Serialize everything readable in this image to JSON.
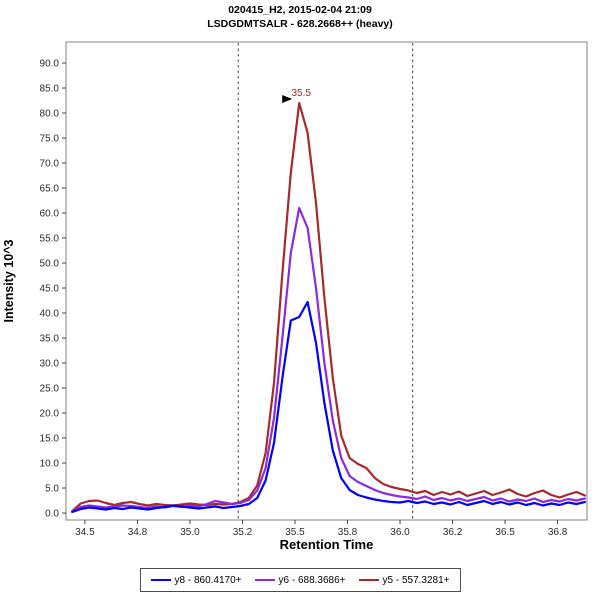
{
  "header": {
    "line1": "020415_H2, 2015-02-04 21:09",
    "line2": "LSDGDMTSALR - 628.2668++ (heavy)"
  },
  "chart_data": {
    "type": "line",
    "title": "020415_H2, 2015-02-04 21:09",
    "subtitle": "LSDGDMTSALR - 628.2668++ (heavy)",
    "xlabel": "Retention Time",
    "ylabel": "Intensity 10^3",
    "xlim": [
      34.41,
      36.89
    ],
    "ylim": [
      -1.4,
      94.2
    ],
    "grid": false,
    "legend_position": "bottom",
    "x_ticks": {
      "values": [
        34.5,
        34.75,
        35.0,
        35.25,
        35.5,
        35.75,
        36.0,
        36.25,
        36.5,
        36.75
      ],
      "labels": [
        "34.5",
        "34.8",
        "35.0",
        "35.2",
        "35.5",
        "35.8",
        "36.0",
        "36.2",
        "36.5",
        "36.8"
      ]
    },
    "y_ticks": {
      "values": [
        0,
        5,
        10,
        15,
        20,
        25,
        30,
        35,
        40,
        45,
        50,
        55,
        60,
        65,
        70,
        75,
        80,
        85,
        90
      ],
      "labels": [
        "0.0",
        "5.0",
        "10.0",
        "15.0",
        "20.0",
        "25.0",
        "30.0",
        "35.0",
        "40.0",
        "45.0",
        "50.0",
        "55.0",
        "60.0",
        "65.0",
        "70.0",
        "75.0",
        "80.0",
        "85.0",
        "90.0"
      ]
    },
    "integration_boundaries": [
      35.23,
      36.06
    ],
    "peak_annotation": {
      "text": "35.5",
      "x": 35.52,
      "y": 82,
      "color": "#A52A2A",
      "arrow_color": "#000000"
    },
    "x": [
      34.44,
      34.48,
      34.52,
      34.56,
      34.6,
      34.64,
      34.68,
      34.72,
      34.76,
      34.8,
      34.84,
      34.88,
      34.92,
      34.96,
      35.0,
      35.04,
      35.08,
      35.12,
      35.16,
      35.2,
      35.24,
      35.28,
      35.32,
      35.36,
      35.4,
      35.44,
      35.48,
      35.52,
      35.56,
      35.6,
      35.64,
      35.68,
      35.72,
      35.76,
      35.8,
      35.84,
      35.88,
      35.92,
      35.96,
      36.0,
      36.04,
      36.08,
      36.12,
      36.16,
      36.2,
      36.24,
      36.28,
      36.32,
      36.36,
      36.4,
      36.44,
      36.48,
      36.52,
      36.56,
      36.6,
      36.64,
      36.68,
      36.72,
      36.76,
      36.8,
      36.84,
      36.88
    ],
    "series": [
      {
        "name": "y8 - 860.4170+",
        "color": "#0000FF",
        "values": [
          0.2,
          0.8,
          1.1,
          0.9,
          0.7,
          1.0,
          0.8,
          1.1,
          0.9,
          0.7,
          1.0,
          1.2,
          1.5,
          1.3,
          1.1,
          0.9,
          1.1,
          1.3,
          1.0,
          1.2,
          1.4,
          1.8,
          3.0,
          6.5,
          14,
          27,
          38.5,
          39.2,
          42.2,
          34,
          22,
          12.5,
          7.0,
          4.6,
          3.6,
          3.1,
          2.7,
          2.4,
          2.2,
          2.1,
          2.4,
          2.0,
          2.3,
          1.8,
          2.1,
          1.7,
          2.2,
          1.6,
          2.0,
          2.4,
          1.8,
          2.2,
          1.7,
          2.1,
          1.6,
          2.0,
          1.5,
          1.9,
          1.6,
          2.1,
          1.8,
          2.2
        ]
      },
      {
        "name": "y6 - 688.3686+",
        "color": "#8A2BE2",
        "values": [
          0.3,
          1.2,
          1.5,
          1.3,
          1.1,
          1.3,
          1.5,
          1.4,
          1.2,
          1.0,
          1.3,
          1.1,
          1.4,
          1.2,
          1.5,
          1.3,
          1.8,
          2.4,
          2.1,
          1.8,
          2.0,
          2.6,
          4.5,
          9,
          19,
          35,
          52,
          61,
          57,
          45,
          30,
          18.5,
          11,
          7.4,
          6.2,
          5.4,
          4.6,
          4.0,
          3.6,
          3.3,
          3.1,
          2.8,
          3.3,
          2.6,
          3.0,
          2.5,
          2.9,
          2.4,
          2.8,
          3.2,
          2.5,
          2.9,
          2.3,
          2.7,
          2.4,
          2.9,
          2.2,
          2.6,
          2.3,
          2.8,
          2.5,
          2.9
        ]
      },
      {
        "name": "y5 - 557.3281+",
        "color": "#A52A2A",
        "values": [
          0.4,
          1.9,
          2.4,
          2.5,
          2.0,
          1.6,
          2.0,
          2.2,
          1.8,
          1.5,
          1.8,
          1.6,
          1.5,
          1.7,
          1.9,
          1.7,
          1.6,
          1.8,
          1.7,
          1.8,
          2.2,
          3.0,
          5.5,
          12,
          26,
          48,
          68,
          82,
          76,
          62,
          43,
          27,
          15.5,
          11,
          9.8,
          9.0,
          7.0,
          5.8,
          5.2,
          4.8,
          4.5,
          4.0,
          4.4,
          3.6,
          4.2,
          3.7,
          4.3,
          3.4,
          3.9,
          4.4,
          3.6,
          4.1,
          4.7,
          3.8,
          3.3,
          4.0,
          4.5,
          3.6,
          3.1,
          3.7,
          4.2,
          3.5
        ]
      }
    ]
  },
  "style": {
    "frame_color": "#808080",
    "tick_color": "#404040",
    "tick_label_color": "#2b2b2b",
    "boundary_color": "#444444"
  }
}
